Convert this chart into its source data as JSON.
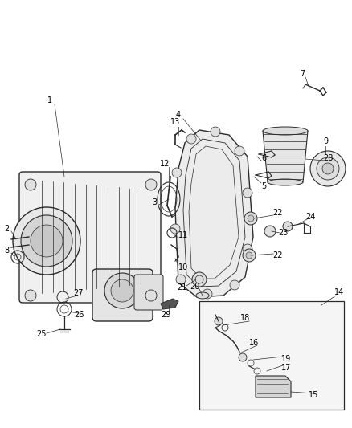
{
  "bg_color": "#ffffff",
  "line_color": "#2a2a2a",
  "label_color": "#000000",
  "fig_w": 4.38,
  "fig_h": 5.33,
  "dpi": 100
}
